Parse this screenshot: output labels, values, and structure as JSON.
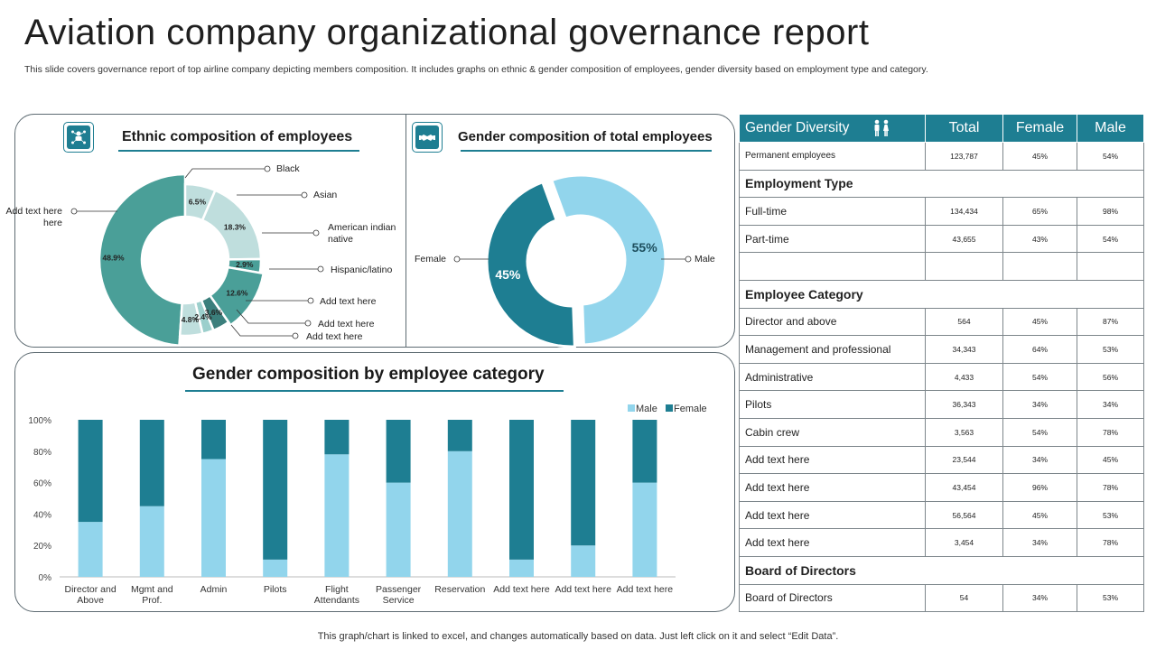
{
  "header": {
    "title": "Aviation company organizational governance report",
    "subtitle": "This slide covers governance report of top airline company depicting members composition. It includes graphs on ethnic  & gender composition of employees, gender diversity based on employment type and category."
  },
  "footer": {
    "note": "This graph/chart is linked to excel, and changes automatically based on data. Just left click on it and select “Edit Data”."
  },
  "colors": {
    "dark_teal": "#1e7e92",
    "medium_teal": "#4a9f98",
    "light_blue": "#92d5ec",
    "ethnic_light": "#bfdedd"
  },
  "sections": {
    "ethnic_title": "Ethnic composition of employees",
    "gender_total_title": "Gender composition of total employees",
    "category_title": "Gender composition by employee category"
  },
  "icons": {
    "ethnic": "people-network-icon",
    "gender_total": "handshake-icon",
    "gender_table": "male-female-icon"
  },
  "chart_data": [
    {
      "type": "pie",
      "title": "Ethnic composition of employees",
      "slices": [
        {
          "label": "Add text here",
          "value": 48.9,
          "display": "48.9%"
        },
        {
          "label": "Black",
          "value": 6.5,
          "display": "6.5%"
        },
        {
          "label": "Asian",
          "value": 18.3,
          "display": "18.3%"
        },
        {
          "label": "American indian native",
          "value": 2.9,
          "display": "2.9%"
        },
        {
          "label": "Hispanic/latino",
          "value": 12.6,
          "display": "12.6%"
        },
        {
          "label": "Add text here",
          "value": 3.6,
          "display": "3.6%"
        },
        {
          "label": "Add text here",
          "value": 2.4,
          "display": "2.4%"
        },
        {
          "label": "Add text here",
          "value": 4.8,
          "display": "4.8%"
        }
      ],
      "callouts": {
        "left": "Add text here",
        "black": "Black",
        "asian": "Asian",
        "american_indian_1": "American indian",
        "american_indian_2": "native",
        "hispanic": "Hispanic/latino",
        "add1": "Add text here",
        "add2": "Add text here",
        "add3": "Add text here"
      }
    },
    {
      "type": "pie",
      "title": "Gender composition of total employees",
      "slices": [
        {
          "label": "Male",
          "value": 55,
          "display": "55%"
        },
        {
          "label": "Female",
          "value": 45,
          "display": "45%"
        }
      ]
    },
    {
      "type": "bar",
      "title": "Gender composition by employee category",
      "stacked": true,
      "categories": [
        "Director and Above",
        "Mgmt and Prof.",
        "Admin",
        "Pilots",
        "Flight Attendants",
        "Passenger Service",
        "Reservation",
        "Add text here",
        "Add text here",
        "Add text here"
      ],
      "category_lines": [
        [
          "Director and",
          "Above"
        ],
        [
          "Mgmt and",
          "Prof."
        ],
        [
          "Admin"
        ],
        [
          "Pilots"
        ],
        [
          "Flight",
          "Attendants"
        ],
        [
          "Passenger",
          "Service"
        ],
        [
          "Reservation"
        ],
        [
          "Add text here"
        ],
        [
          "Add text here"
        ],
        [
          "Add text here"
        ]
      ],
      "series": [
        {
          "name": "Male",
          "values": [
            35,
            45,
            75,
            11,
            78,
            60,
            80,
            11,
            20,
            60
          ]
        },
        {
          "name": "Female",
          "values": [
            65,
            55,
            25,
            89,
            22,
            40,
            20,
            89,
            80,
            40
          ]
        }
      ],
      "yticks": [
        "0%",
        "20%",
        "40%",
        "60%",
        "80%",
        "100%"
      ],
      "ylim": [
        0,
        100
      ],
      "legend": "top-right"
    }
  ],
  "table": {
    "headers": [
      "Gender Diversity",
      "Total",
      "Female",
      "Male"
    ],
    "permanent": {
      "label": "Permanent employees",
      "total": "123,787",
      "female": "45%",
      "male": "54%"
    },
    "employment_type": {
      "title": "Employment Type",
      "rows": [
        {
          "label": "Full-time",
          "total": "134,434",
          "female": "65%",
          "male": "98%"
        },
        {
          "label": "Part-time",
          "total": "43,655",
          "female": "43%",
          "male": "54%"
        }
      ]
    },
    "employee_category": {
      "title": "Employee Category",
      "rows": [
        {
          "label": "Director and above",
          "total": "564",
          "female": "45%",
          "male": "87%"
        },
        {
          "label": "Management and professional",
          "total": "34,343",
          "female": "64%",
          "male": "53%"
        },
        {
          "label": "Administrative",
          "total": "4,433",
          "female": "54%",
          "male": "56%"
        },
        {
          "label": "Pilots",
          "total": "36,343",
          "female": "34%",
          "male": "34%"
        },
        {
          "label": "Cabin crew",
          "total": "3,563",
          "female": "54%",
          "male": "78%"
        },
        {
          "label": "Add text here",
          "total": "23,544",
          "female": "34%",
          "male": "45%"
        },
        {
          "label": "Add text here",
          "total": "43,454",
          "female": "96%",
          "male": "78%"
        },
        {
          "label": "Add text here",
          "total": "56,564",
          "female": "45%",
          "male": "53%"
        },
        {
          "label": "Add text here",
          "total": "3,454",
          "female": "34%",
          "male": "78%"
        }
      ]
    },
    "board": {
      "title": "Board of Directors",
      "rows": [
        {
          "label": "Board of Directors",
          "total": "54",
          "female": "34%",
          "male": "53%"
        }
      ]
    }
  }
}
